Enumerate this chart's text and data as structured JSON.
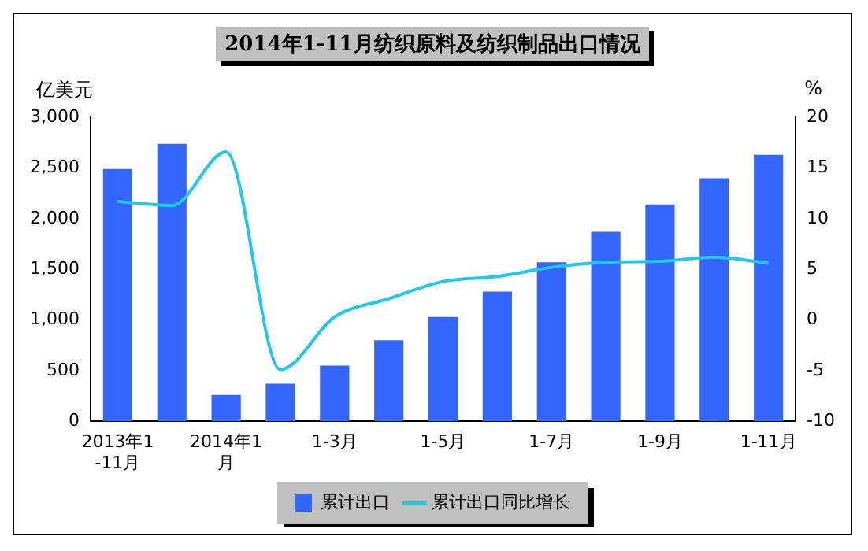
{
  "chart_data": {
    "type": "bar",
    "title": "2014年1-11月纺织原料及纺织制品出口情况",
    "ylabel": "亿美元",
    "y2label": "%",
    "categories": [
      "2013年1-11月",
      null,
      "2014年1月",
      null,
      "1-3月",
      null,
      "1-5月",
      null,
      "1-7月",
      null,
      "1-9月",
      null,
      "1-11月"
    ],
    "series": [
      {
        "name": "累计出口",
        "color": "#3366ff",
        "values": [
          2490,
          2740,
          260,
          370,
          550,
          800,
          1030,
          1280,
          1570,
          1870,
          2140,
          2400,
          2630
        ]
      },
      {
        "name": "累计出口同比增长",
        "type": "line",
        "axis": "y2",
        "color": "#1ec8f0",
        "values": [
          11.7,
          11.3,
          16.6,
          -4.9,
          0.3,
          2.1,
          3.8,
          4.3,
          5.2,
          5.7,
          5.8,
          6.2,
          5.6
        ]
      }
    ],
    "ylim": [
      0,
      3000
    ],
    "yticks": [
      {
        "value": 0,
        "label": "0"
      },
      {
        "value": 500,
        "label": "500"
      },
      {
        "value": 1000,
        "label": "1,000"
      },
      {
        "value": 1500,
        "label": "1,500"
      },
      {
        "value": 2000,
        "label": "2,000"
      },
      {
        "value": 2500,
        "label": "2,500"
      },
      {
        "value": 3000,
        "label": "3,000"
      }
    ],
    "y2lim": [
      -10,
      20
    ],
    "y2ticks": [
      -10,
      -5,
      0,
      5,
      10,
      15,
      20
    ],
    "grid": false,
    "legend": "bottom",
    "marker": "none"
  }
}
